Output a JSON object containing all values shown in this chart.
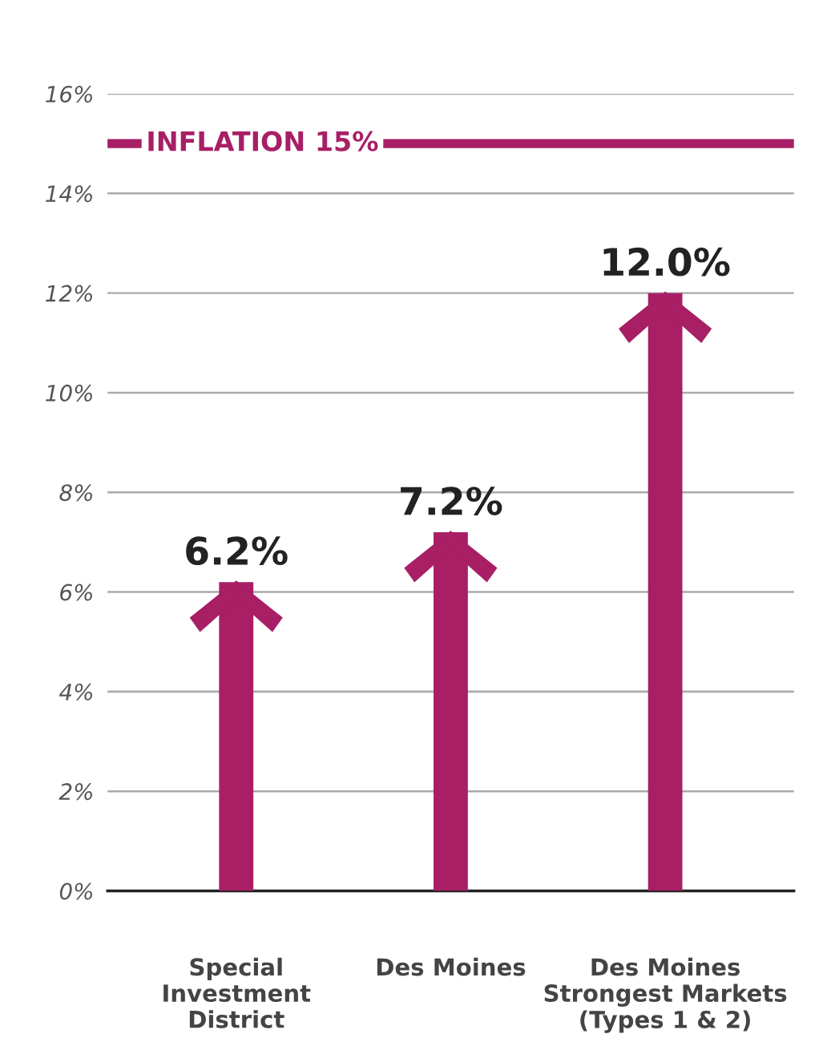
{
  "chart_data": {
    "type": "bar",
    "categories": [
      "Special\nInvestment\nDistrict",
      "Des Moines",
      "Des Moines\nStrongest Markets\n(Types 1 & 2)"
    ],
    "values": [
      6.2,
      7.2,
      12.0
    ],
    "value_labels": [
      "6.2%",
      "7.2%",
      "12.0%"
    ],
    "color": "#a81f66",
    "ylim": [
      0,
      16
    ],
    "yticks": [
      {
        "value": 0,
        "label": "0%"
      },
      {
        "value": 2,
        "label": "2%"
      },
      {
        "value": 4,
        "label": "4%"
      },
      {
        "value": 6,
        "label": "6%"
      },
      {
        "value": 8,
        "label": "8%"
      },
      {
        "value": 10,
        "label": "10%"
      },
      {
        "value": 12,
        "label": "12%"
      },
      {
        "value": 14,
        "label": "14%"
      },
      {
        "value": 16,
        "label": "16%"
      }
    ],
    "grid": "y",
    "ref_lines": [
      {
        "axis": "y",
        "value": 15,
        "label": "INFLATION 15%",
        "color": "#a81f66"
      }
    ]
  }
}
